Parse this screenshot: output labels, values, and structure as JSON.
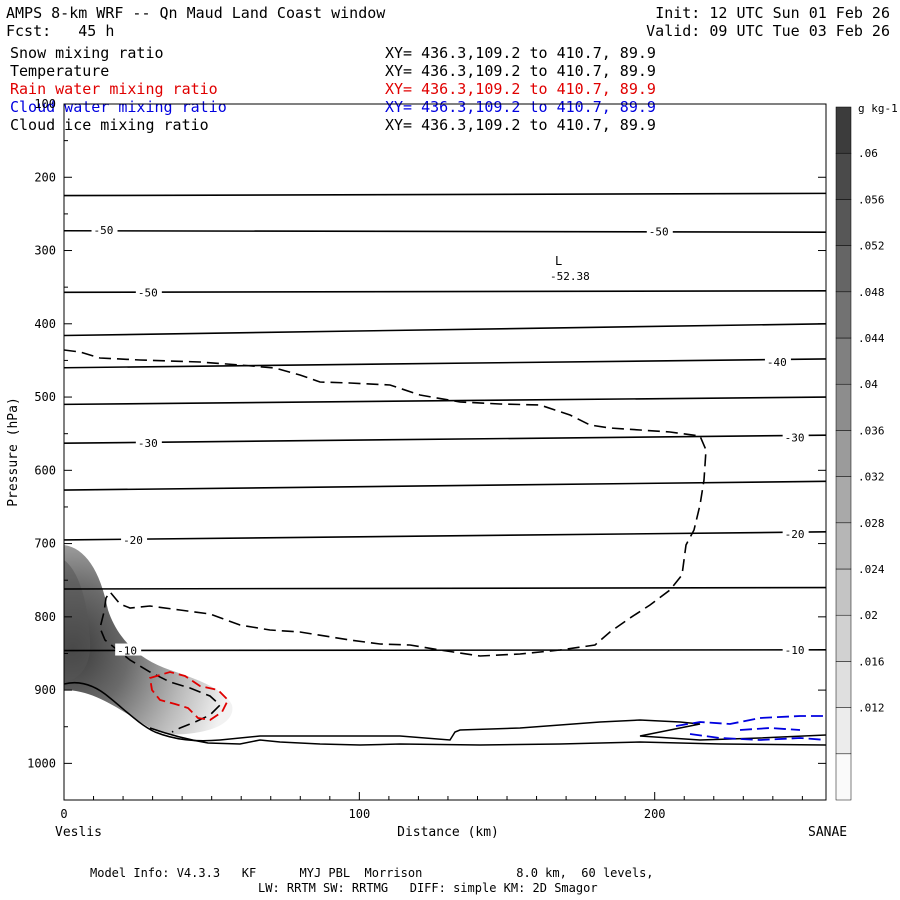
{
  "header": {
    "title": "AMPS 8-km WRF -- Qn Maud Land Coast window",
    "fcst": "Fcst:   45 h",
    "init": "Init: 12 UTC Sun 01 Feb 26",
    "valid": "Valid: 09 UTC Tue 03 Feb 26"
  },
  "legend": [
    {
      "label": "Snow mixing ratio",
      "xy": "XY= 436.3,109.2 to 410.7, 89.9",
      "color": "#000000"
    },
    {
      "label": "Temperature",
      "xy": "XY= 436.3,109.2 to 410.7, 89.9",
      "color": "#000000"
    },
    {
      "label": "Rain water mixing ratio",
      "xy": "XY= 436.3,109.2 to 410.7, 89.9",
      "color": "#e00000"
    },
    {
      "label": "Cloud water mixing ratio",
      "xy": "XY= 436.3,109.2 to 410.7, 89.9",
      "color": "#0000e0"
    },
    {
      "label": "Cloud ice mixing ratio",
      "xy": "XY= 436.3,109.2 to 410.7, 89.9",
      "color": "#000000"
    }
  ],
  "chart_data": {
    "type": "cross-section contour",
    "xlabel": "Distance (km)",
    "ylabel": "Pressure (hPa)",
    "xlim": [
      0,
      258
    ],
    "ylim": [
      1050,
      100
    ],
    "x_ticks": [
      0,
      100,
      200
    ],
    "y_ticks": [
      100,
      200,
      300,
      400,
      500,
      600,
      700,
      800,
      900,
      1000
    ],
    "left_endpoint": "Veslis",
    "right_endpoint": "SANAE",
    "temperature_isotherms": [
      {
        "x": [
          0,
          258
        ],
        "p": [
          225,
          222
        ]
      },
      {
        "x": [
          0,
          258
        ],
        "p": [
          273,
          275
        ],
        "label": "-50"
      },
      {
        "x": [
          0,
          258
        ],
        "p": [
          357,
          355
        ],
        "label": "-50"
      },
      {
        "x": [
          0,
          258
        ],
        "p": [
          416,
          400
        ]
      },
      {
        "x": [
          0,
          258
        ],
        "p": [
          460,
          448
        ],
        "label": "-40"
      },
      {
        "x": [
          0,
          258
        ],
        "p": [
          510,
          500
        ]
      },
      {
        "x": [
          0,
          258
        ],
        "p": [
          563,
          552
        ],
        "label": "-30"
      },
      {
        "x": [
          0,
          258
        ],
        "p": [
          627,
          615
        ]
      },
      {
        "x": [
          0,
          258
        ],
        "p": [
          695,
          684
        ],
        "label": "-20"
      },
      {
        "x": [
          0,
          258
        ],
        "p": [
          762,
          760
        ]
      },
      {
        "x": [
          0,
          258
        ],
        "p": [
          846,
          845
        ],
        "label": "-10"
      }
    ],
    "isotherm_labels": [
      {
        "text": "-50",
        "x": 10,
        "p": 272
      },
      {
        "text": "-50",
        "x": 198,
        "p": 274
      },
      {
        "text": "-50",
        "x": 25,
        "p": 357
      },
      {
        "text": "-40",
        "x": 238,
        "p": 452
      },
      {
        "text": "-30",
        "x": 25,
        "p": 563
      },
      {
        "text": "-30",
        "x": 244,
        "p": 555
      },
      {
        "text": "-20",
        "x": 20,
        "p": 695
      },
      {
        "text": "-20",
        "x": 244,
        "p": 687
      },
      {
        "text": "-10",
        "x": 18,
        "p": 846
      },
      {
        "text": "-10",
        "x": 244,
        "p": 845
      }
    ],
    "low_label": {
      "text": "L",
      "value": "-52.38",
      "x": 168,
      "p": 330
    },
    "snow_max_gkg": 0.06,
    "colorbar": {
      "unit": "g kg-1",
      "ticks": [
        ".012",
        ".016",
        ".02",
        ".024",
        ".028",
        ".032",
        ".036",
        ".04",
        ".044",
        ".048",
        ".052",
        ".056",
        ".06"
      ]
    },
    "footer_lines": [
      "Model Info: V4.3.3   KF      MYJ PBL  Morrison             8.0 km,  60 levels,",
      "LW: RRTM SW: RRTMG   DIFF: simple KM: 2D Smagor"
    ]
  }
}
